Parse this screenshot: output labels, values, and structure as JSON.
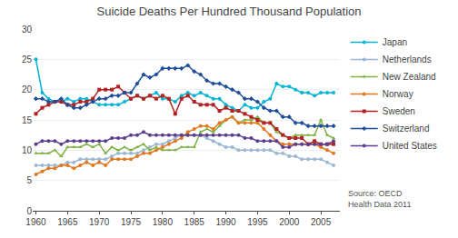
{
  "chart_data": {
    "type": "line",
    "title": "Suicide Deaths Per Hundred Thousand Population",
    "annotation": "Source: OECD\nHealth Data 2011",
    "x": [
      1960,
      1961,
      1962,
      1963,
      1964,
      1965,
      1966,
      1967,
      1968,
      1969,
      1970,
      1971,
      1972,
      1973,
      1974,
      1975,
      1976,
      1977,
      1978,
      1979,
      1980,
      1981,
      1982,
      1983,
      1984,
      1985,
      1986,
      1987,
      1988,
      1989,
      1990,
      1991,
      1992,
      1993,
      1994,
      1995,
      1996,
      1997,
      1998,
      1999,
      2000,
      2001,
      2002,
      2003,
      2004,
      2005,
      2006,
      2007
    ],
    "series": [
      {
        "name": "Japan",
        "color": "#00B4D4",
        "marker": "circle",
        "values": [
          25.0,
          19.5,
          18.5,
          18.0,
          18.0,
          18.5,
          18.0,
          18.5,
          18.5,
          18.0,
          17.5,
          17.5,
          17.5,
          17.5,
          18.0,
          18.5,
          19.0,
          18.5,
          19.0,
          19.5,
          18.5,
          18.5,
          18.0,
          19.0,
          19.5,
          19.0,
          19.5,
          19.0,
          18.5,
          18.5,
          17.5,
          17.0,
          16.5,
          17.5,
          17.0,
          17.0,
          18.0,
          18.5,
          21.0,
          20.5,
          20.5,
          20.0,
          19.5,
          19.5,
          19.0,
          19.5,
          19.5,
          19.5
        ]
      },
      {
        "name": "Netherlands",
        "color": "#9BB7D4",
        "marker": "circle",
        "values": [
          7.5,
          7.5,
          7.5,
          7.5,
          7.5,
          8.0,
          8.0,
          8.5,
          8.5,
          8.5,
          8.5,
          8.5,
          9.0,
          9.5,
          9.5,
          9.5,
          9.5,
          10.0,
          10.5,
          11.0,
          11.0,
          11.5,
          12.0,
          12.5,
          12.5,
          12.5,
          12.5,
          12.0,
          11.5,
          11.0,
          10.5,
          10.5,
          10.0,
          10.0,
          10.0,
          10.0,
          10.0,
          10.0,
          9.5,
          9.5,
          9.0,
          9.0,
          8.5,
          8.5,
          8.5,
          8.5,
          8.0,
          7.5
        ]
      },
      {
        "name": "New Zealand",
        "color": "#7FB241",
        "marker": "triangle-up",
        "values": [
          9.5,
          9.5,
          9.5,
          10.0,
          9.0,
          10.5,
          10.5,
          10.5,
          11.0,
          10.5,
          11.0,
          9.5,
          10.5,
          10.0,
          10.5,
          10.0,
          10.5,
          11.0,
          10.0,
          10.5,
          10.0,
          10.0,
          10.0,
          10.5,
          10.5,
          10.5,
          13.0,
          13.5,
          13.0,
          14.0,
          15.0,
          15.5,
          14.5,
          15.0,
          15.0,
          15.5,
          14.5,
          14.5,
          13.0,
          12.5,
          12.0,
          12.5,
          12.5,
          12.5,
          12.5,
          15.0,
          12.5,
          12.0
        ]
      },
      {
        "name": "Norway",
        "color": "#E07820",
        "marker": "circle",
        "values": [
          6.0,
          6.5,
          7.0,
          7.0,
          7.5,
          7.5,
          7.0,
          7.5,
          8.0,
          7.5,
          8.0,
          7.5,
          8.5,
          8.5,
          8.5,
          8.5,
          9.0,
          9.5,
          9.5,
          10.0,
          10.5,
          11.0,
          11.5,
          12.0,
          13.0,
          13.5,
          14.0,
          14.0,
          13.5,
          14.5,
          15.0,
          15.5,
          14.5,
          14.5,
          14.5,
          14.5,
          13.5,
          12.5,
          11.5,
          11.0,
          11.0,
          11.0,
          11.0,
          11.0,
          11.0,
          10.5,
          10.0,
          9.5
        ]
      },
      {
        "name": "Sweden",
        "color": "#B22222",
        "marker": "square",
        "values": [
          16.0,
          17.0,
          17.5,
          18.0,
          18.0,
          17.5,
          17.5,
          18.0,
          18.0,
          18.5,
          20.0,
          20.0,
          20.0,
          20.5,
          19.5,
          18.5,
          19.0,
          18.5,
          19.0,
          18.5,
          19.0,
          18.5,
          16.0,
          18.5,
          19.0,
          18.0,
          17.5,
          17.5,
          17.5,
          16.5,
          17.0,
          16.5,
          16.5,
          16.0,
          15.5,
          15.0,
          14.5,
          14.5,
          13.5,
          12.5,
          12.0,
          12.0,
          12.0,
          11.0,
          11.5,
          11.0,
          11.0,
          11.0
        ]
      },
      {
        "name": "Switzerland",
        "color": "#1F4E99",
        "marker": "diamond",
        "values": [
          18.5,
          18.5,
          18.0,
          18.0,
          18.5,
          17.5,
          17.0,
          17.0,
          17.5,
          18.0,
          18.5,
          18.5,
          19.0,
          19.0,
          19.5,
          19.5,
          21.0,
          22.5,
          22.0,
          22.5,
          23.5,
          23.5,
          23.5,
          23.5,
          24.0,
          23.0,
          22.5,
          21.5,
          21.0,
          21.0,
          20.5,
          20.0,
          19.5,
          18.5,
          18.5,
          18.0,
          17.0,
          16.5,
          16.5,
          15.5,
          15.5,
          14.5,
          14.5,
          14.0,
          14.0,
          14.0,
          14.0,
          14.0
        ]
      },
      {
        "name": "United States",
        "color": "#5C3D8F",
        "marker": "circle",
        "values": [
          11.0,
          11.5,
          11.5,
          11.5,
          11.0,
          11.5,
          11.5,
          11.5,
          11.5,
          11.5,
          11.5,
          11.5,
          12.0,
          12.0,
          12.0,
          12.5,
          12.5,
          13.0,
          12.5,
          12.5,
          12.5,
          12.5,
          12.5,
          12.5,
          12.5,
          12.5,
          12.5,
          12.5,
          12.5,
          12.5,
          12.5,
          12.5,
          12.5,
          12.0,
          12.0,
          11.5,
          11.5,
          11.5,
          11.5,
          10.5,
          10.5,
          11.0,
          11.0,
          11.0,
          11.0,
          11.0,
          11.0,
          11.5
        ]
      }
    ],
    "xlim": [
      1959.5,
      2008
    ],
    "xticks": [
      1960,
      1965,
      1970,
      1975,
      1980,
      1985,
      1990,
      1995,
      2000,
      2005
    ],
    "ylim": [
      0,
      30
    ],
    "yticks": [
      0,
      5,
      10,
      15,
      20,
      25,
      30
    ],
    "grid": true,
    "legend": "right"
  }
}
